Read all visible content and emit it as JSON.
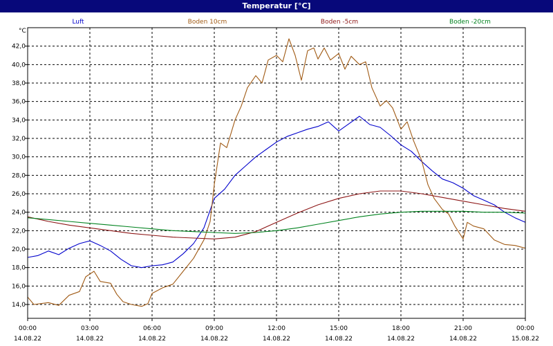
{
  "chart_data": {
    "type": "line",
    "title": "Temperatur [°C]",
    "ylabel": "°C",
    "ylim": [
      12.5,
      44
    ],
    "yticks": [
      "14,0",
      "16,0",
      "18,0",
      "20,0",
      "22,0",
      "24,0",
      "26,0",
      "28,0",
      "30,0",
      "32,0",
      "34,0",
      "36,0",
      "38,0",
      "40,0",
      "42,0"
    ],
    "xlim_hours": [
      0,
      24
    ],
    "xticks": [
      {
        "time": "00:00",
        "date": "14.08.22"
      },
      {
        "time": "03:00",
        "date": "14.08.22"
      },
      {
        "time": "06:00",
        "date": "14.08.22"
      },
      {
        "time": "09:00",
        "date": "14.08.22"
      },
      {
        "time": "12:00",
        "date": "14.08.22"
      },
      {
        "time": "15:00",
        "date": "14.08.22"
      },
      {
        "time": "18:00",
        "date": "14.08.22"
      },
      {
        "time": "21:00",
        "date": "14.08.22"
      },
      {
        "time": "00:00",
        "date": "15.08.22"
      }
    ],
    "grid": true,
    "legend_position": "top",
    "series": [
      {
        "name": "Luft",
        "color": "#0000cc",
        "points": [
          [
            0,
            19.1
          ],
          [
            0.5,
            19.3
          ],
          [
            1,
            19.8
          ],
          [
            1.5,
            19.4
          ],
          [
            2,
            20.1
          ],
          [
            2.5,
            20.6
          ],
          [
            3,
            20.9
          ],
          [
            3.5,
            20.4
          ],
          [
            4,
            19.8
          ],
          [
            4.5,
            18.9
          ],
          [
            5,
            18.2
          ],
          [
            5.5,
            18.0
          ],
          [
            6,
            18.2
          ],
          [
            6.5,
            18.3
          ],
          [
            7,
            18.6
          ],
          [
            7.5,
            19.5
          ],
          [
            8,
            20.6
          ],
          [
            8.5,
            22.3
          ],
          [
            9,
            25.5
          ],
          [
            9.5,
            26.5
          ],
          [
            10,
            28.0
          ],
          [
            10.5,
            29.0
          ],
          [
            11,
            30.0
          ],
          [
            11.5,
            30.8
          ],
          [
            12,
            31.6
          ],
          [
            12.5,
            32.2
          ],
          [
            13,
            32.6
          ],
          [
            13.5,
            33.0
          ],
          [
            14,
            33.3
          ],
          [
            14.5,
            33.8
          ],
          [
            15,
            32.8
          ],
          [
            15.5,
            33.6
          ],
          [
            16,
            34.4
          ],
          [
            16.5,
            33.5
          ],
          [
            17,
            33.2
          ],
          [
            17.5,
            32.3
          ],
          [
            18,
            31.3
          ],
          [
            18.5,
            30.6
          ],
          [
            19,
            29.5
          ],
          [
            19.5,
            28.5
          ],
          [
            20,
            27.6
          ],
          [
            20.5,
            27.2
          ],
          [
            21,
            26.6
          ],
          [
            21.5,
            25.8
          ],
          [
            22,
            25.3
          ],
          [
            22.5,
            24.8
          ],
          [
            23,
            24.0
          ],
          [
            23.5,
            23.4
          ],
          [
            24,
            22.9
          ]
        ]
      },
      {
        "name": "Boden 10cm",
        "color": "#a05a14",
        "points": [
          [
            0,
            14.8
          ],
          [
            0.3,
            14.0
          ],
          [
            1,
            14.2
          ],
          [
            1.5,
            13.9
          ],
          [
            2,
            15.0
          ],
          [
            2.5,
            15.4
          ],
          [
            2.8,
            17.0
          ],
          [
            3.2,
            17.6
          ],
          [
            3.5,
            16.5
          ],
          [
            4,
            16.3
          ],
          [
            4.3,
            15.1
          ],
          [
            4.6,
            14.3
          ],
          [
            5,
            14.0
          ],
          [
            5.5,
            13.8
          ],
          [
            5.8,
            14.1
          ],
          [
            6,
            15.2
          ],
          [
            6.5,
            15.8
          ],
          [
            7,
            16.2
          ],
          [
            7.5,
            17.6
          ],
          [
            8,
            19.0
          ],
          [
            8.5,
            21.0
          ],
          [
            8.8,
            23.0
          ],
          [
            9,
            27.0
          ],
          [
            9.3,
            31.5
          ],
          [
            9.6,
            31.0
          ],
          [
            10,
            34.0
          ],
          [
            10.3,
            35.5
          ],
          [
            10.6,
            37.5
          ],
          [
            11,
            38.8
          ],
          [
            11.3,
            38.0
          ],
          [
            11.6,
            40.5
          ],
          [
            12,
            41.0
          ],
          [
            12.3,
            40.3
          ],
          [
            12.6,
            42.8
          ],
          [
            12.9,
            41.0
          ],
          [
            13.2,
            38.3
          ],
          [
            13.5,
            41.5
          ],
          [
            13.8,
            41.8
          ],
          [
            14,
            40.6
          ],
          [
            14.3,
            41.8
          ],
          [
            14.6,
            40.5
          ],
          [
            15,
            41.2
          ],
          [
            15.3,
            39.5
          ],
          [
            15.6,
            40.9
          ],
          [
            16,
            40.0
          ],
          [
            16.3,
            40.3
          ],
          [
            16.6,
            37.5
          ],
          [
            17,
            35.5
          ],
          [
            17.3,
            36.1
          ],
          [
            17.6,
            35.3
          ],
          [
            18,
            33.0
          ],
          [
            18.3,
            33.8
          ],
          [
            18.6,
            31.8
          ],
          [
            19,
            29.6
          ],
          [
            19.3,
            27.0
          ],
          [
            19.6,
            25.5
          ],
          [
            20,
            24.3
          ],
          [
            20.3,
            23.8
          ],
          [
            20.6,
            22.5
          ],
          [
            21,
            21.1
          ],
          [
            21.2,
            22.9
          ],
          [
            21.5,
            22.5
          ],
          [
            22,
            22.2
          ],
          [
            22.5,
            21.0
          ],
          [
            23,
            20.5
          ],
          [
            23.5,
            20.4
          ],
          [
            24,
            20.1
          ]
        ]
      },
      {
        "name": "Boden -5cm",
        "color": "#8c1414",
        "points": [
          [
            0,
            23.5
          ],
          [
            1,
            23.0
          ],
          [
            2,
            22.6
          ],
          [
            3,
            22.3
          ],
          [
            4,
            22.0
          ],
          [
            5,
            21.7
          ],
          [
            6,
            21.5
          ],
          [
            7,
            21.3
          ],
          [
            8,
            21.2
          ],
          [
            9,
            21.1
          ],
          [
            10,
            21.3
          ],
          [
            11,
            21.9
          ],
          [
            12,
            22.9
          ],
          [
            13,
            23.9
          ],
          [
            14,
            24.8
          ],
          [
            15,
            25.5
          ],
          [
            16,
            26.0
          ],
          [
            17,
            26.3
          ],
          [
            18,
            26.3
          ],
          [
            19,
            26.0
          ],
          [
            20,
            25.6
          ],
          [
            21,
            25.2
          ],
          [
            22,
            24.8
          ],
          [
            23,
            24.4
          ],
          [
            24,
            24.1
          ]
        ]
      },
      {
        "name": "Boden -20cm",
        "color": "#00821e",
        "points": [
          [
            0,
            23.4
          ],
          [
            1,
            23.2
          ],
          [
            2,
            23.0
          ],
          [
            3,
            22.8
          ],
          [
            4,
            22.6
          ],
          [
            5,
            22.4
          ],
          [
            6,
            22.2
          ],
          [
            7,
            22.0
          ],
          [
            8,
            21.9
          ],
          [
            9,
            21.8
          ],
          [
            10,
            21.7
          ],
          [
            11,
            21.8
          ],
          [
            12,
            22.0
          ],
          [
            13,
            22.3
          ],
          [
            14,
            22.7
          ],
          [
            15,
            23.1
          ],
          [
            16,
            23.5
          ],
          [
            17,
            23.8
          ],
          [
            18,
            24.0
          ],
          [
            19,
            24.1
          ],
          [
            20,
            24.1
          ],
          [
            21,
            24.1
          ],
          [
            22,
            24.0
          ],
          [
            23,
            24.0
          ],
          [
            24,
            23.9
          ]
        ]
      }
    ]
  }
}
